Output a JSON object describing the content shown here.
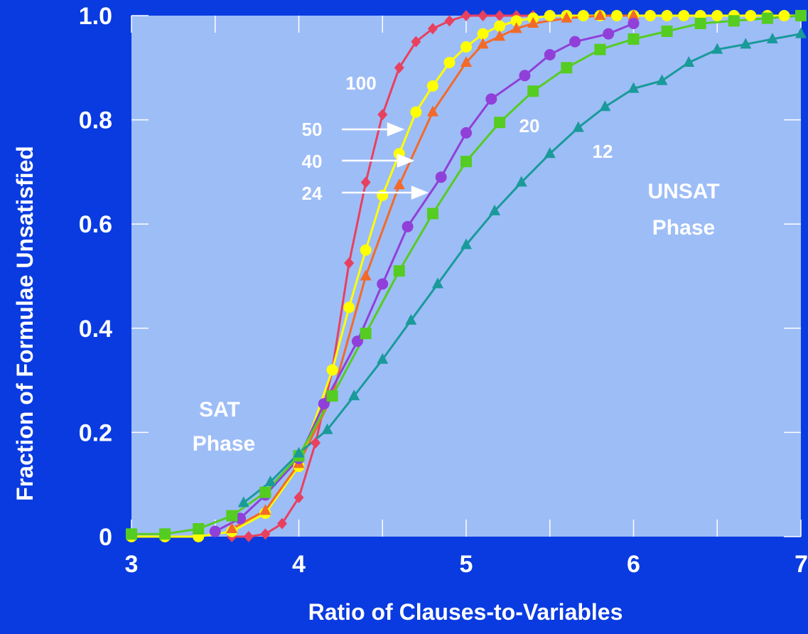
{
  "chart_data": {
    "type": "line",
    "title": "",
    "xlabel": "Ratio of Clauses-to-Variables",
    "ylabel": "Fraction of Formulae Unsatisfied",
    "xlim": [
      3,
      7
    ],
    "ylim": [
      0,
      1
    ],
    "x_ticks": [
      "3",
      "4",
      "5",
      "6",
      "7"
    ],
    "y_ticks": [
      "0",
      "0.2",
      "0.4",
      "0.6",
      "0.8",
      "1.0"
    ],
    "grid": false,
    "colors": {
      "background": "#0a3be0",
      "plot_area": "#9dbdf7",
      "text": "#ffffff"
    },
    "series": [
      {
        "name": "100",
        "color": "#e8405f",
        "marker": "diamond",
        "x": [
          3.6,
          3.7,
          3.8,
          3.9,
          4.0,
          4.1,
          4.2,
          4.3,
          4.4,
          4.5,
          4.6,
          4.7,
          4.8,
          4.9,
          5.0,
          5.1,
          5.2,
          5.3,
          5.4
        ],
        "y": [
          0,
          0,
          0.005,
          0.025,
          0.075,
          0.18,
          0.32,
          0.525,
          0.68,
          0.81,
          0.9,
          0.95,
          0.975,
          0.99,
          1.0,
          1.0,
          1.0,
          1.0,
          1.0
        ]
      },
      {
        "name": "50",
        "color": "#ffff00",
        "marker": "circle",
        "x": [
          3.0,
          3.2,
          3.4,
          3.6,
          3.8,
          4.0,
          4.2,
          4.3,
          4.4,
          4.5,
          4.6,
          4.7,
          4.8,
          4.9,
          5.0,
          5.1,
          5.2,
          5.3,
          5.4,
          5.5,
          5.6,
          5.7,
          5.8,
          5.9,
          6.0,
          6.1,
          6.2,
          6.3,
          6.4,
          6.5,
          6.6,
          6.7,
          6.8,
          6.9,
          7.0
        ],
        "y": [
          0,
          0,
          0,
          0.01,
          0.045,
          0.135,
          0.32,
          0.44,
          0.55,
          0.655,
          0.735,
          0.815,
          0.865,
          0.91,
          0.94,
          0.965,
          0.98,
          0.99,
          0.995,
          1.0,
          1.0,
          1.0,
          1.0,
          1.0,
          1.0,
          1.0,
          1.0,
          1.0,
          1.0,
          1.0,
          1.0,
          1.0,
          1.0,
          1.0,
          1.0
        ]
      },
      {
        "name": "40",
        "color": "#f26a28",
        "marker": "triangle",
        "x": [
          3.6,
          3.8,
          4.0,
          4.2,
          4.4,
          4.6,
          4.8,
          5.0,
          5.1,
          5.2,
          5.3,
          5.4,
          5.6,
          5.8,
          6.0
        ],
        "y": [
          0.015,
          0.05,
          0.14,
          0.27,
          0.5,
          0.675,
          0.815,
          0.91,
          0.945,
          0.96,
          0.975,
          0.985,
          0.995,
          1.0,
          1.0
        ]
      },
      {
        "name": "24",
        "color": "#9040d8",
        "marker": "circle",
        "x": [
          3.5,
          3.65,
          3.8,
          4.0,
          4.15,
          4.35,
          4.5,
          4.65,
          4.85,
          5.0,
          5.15,
          5.35,
          5.5,
          5.65,
          5.85,
          6.0
        ],
        "y": [
          0.01,
          0.035,
          0.08,
          0.15,
          0.255,
          0.375,
          0.485,
          0.595,
          0.69,
          0.775,
          0.84,
          0.885,
          0.925,
          0.95,
          0.965,
          0.985
        ]
      },
      {
        "name": "20",
        "color": "#55cc22",
        "marker": "square",
        "x": [
          3.0,
          3.2,
          3.4,
          3.6,
          3.8,
          4.0,
          4.2,
          4.4,
          4.6,
          4.8,
          5.0,
          5.2,
          5.4,
          5.6,
          5.8,
          6.0,
          6.2,
          6.4,
          6.6,
          6.8,
          7.0
        ],
        "y": [
          0.005,
          0.005,
          0.015,
          0.04,
          0.085,
          0.155,
          0.27,
          0.39,
          0.51,
          0.62,
          0.72,
          0.795,
          0.855,
          0.9,
          0.935,
          0.955,
          0.97,
          0.985,
          0.99,
          0.995,
          1.0
        ]
      },
      {
        "name": "12",
        "color": "#1a9a9a",
        "marker": "triangle",
        "x": [
          3.67,
          3.83,
          4.0,
          4.17,
          4.33,
          4.5,
          4.67,
          4.83,
          5.0,
          5.17,
          5.33,
          5.5,
          5.67,
          5.83,
          6.0,
          6.17,
          6.33,
          6.5,
          6.67,
          6.83,
          7.0
        ],
        "y": [
          0.065,
          0.105,
          0.16,
          0.205,
          0.27,
          0.34,
          0.415,
          0.485,
          0.56,
          0.625,
          0.68,
          0.735,
          0.785,
          0.825,
          0.86,
          0.875,
          0.91,
          0.935,
          0.945,
          0.955,
          0.965
        ]
      }
    ],
    "annotations": {
      "label_100": "100",
      "label_50": "50",
      "label_40": "40",
      "label_24": "24",
      "label_20": "20",
      "label_12": "12",
      "unsat_line1": "UNSAT",
      "unsat_line2": "Phase",
      "sat_line1": "SAT",
      "sat_line2": "Phase"
    }
  }
}
